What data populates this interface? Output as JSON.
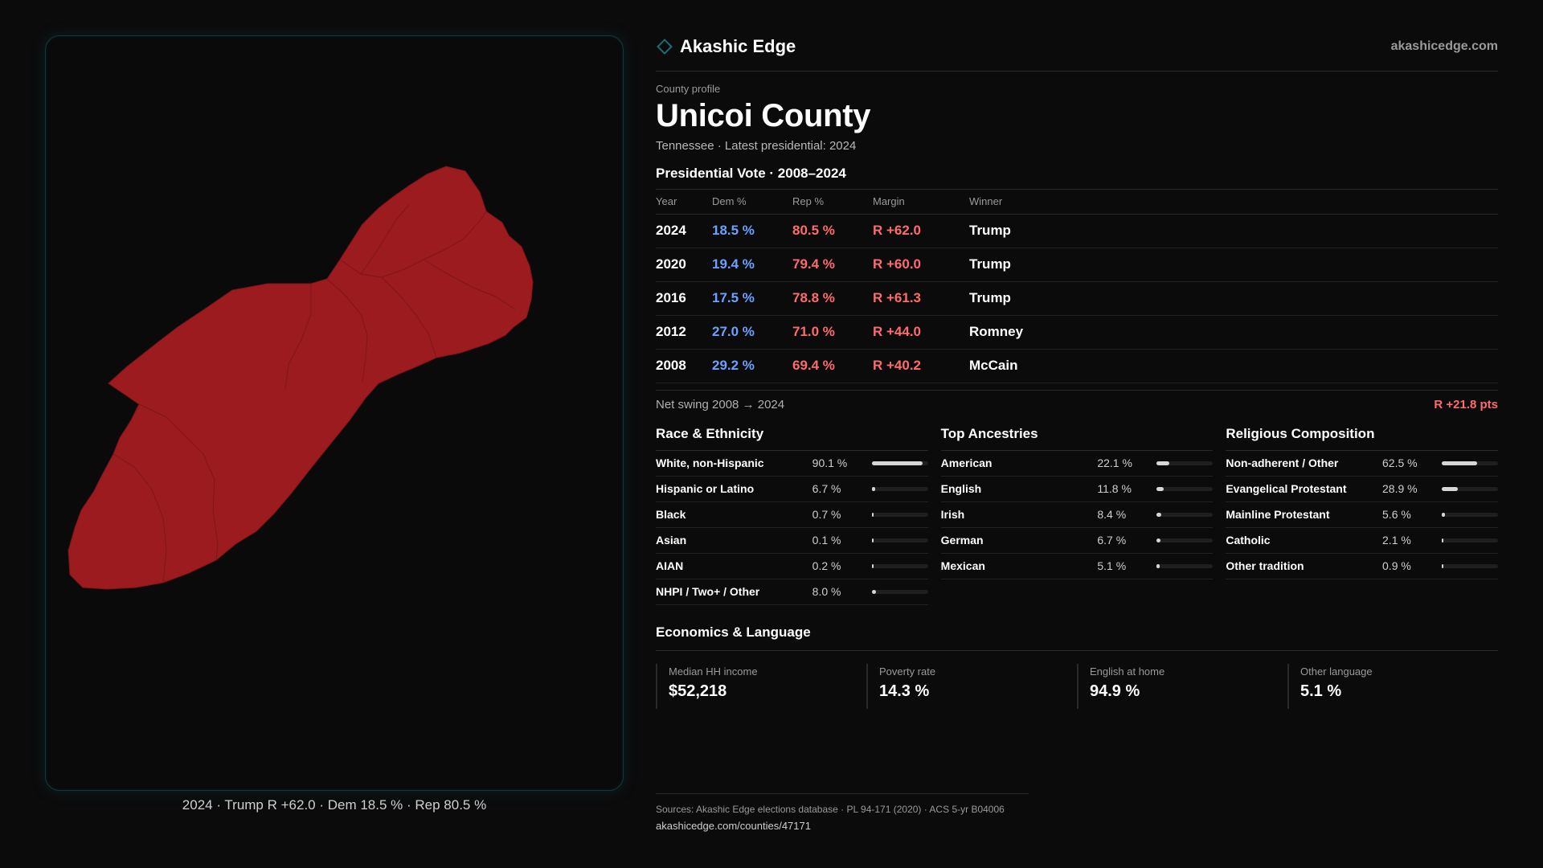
{
  "brand": {
    "name": "Akashic Edge",
    "url": "akashicedge.com",
    "logo_icon": "diamond-outline-icon",
    "accent": "#1d6c72"
  },
  "map": {
    "caption": "2024 · Trump R +62.0 · Dem 18.5 % · Rep 80.5 %",
    "fill_color": "#9b1b1f"
  },
  "profile": {
    "kicker": "County profile",
    "title": "Unicoi County",
    "subtitle": "Tennessee · Latest presidential: 2024"
  },
  "vote": {
    "title": "Presidential Vote · 2008–2024",
    "headers": {
      "year": "Year",
      "dem": "Dem %",
      "rep": "Rep %",
      "margin": "Margin",
      "winner": "Winner"
    },
    "rows": [
      {
        "year": "2024",
        "dem": "18.5 %",
        "rep": "80.5 %",
        "margin": "R +62.0",
        "winner": "Trump"
      },
      {
        "year": "2020",
        "dem": "19.4 %",
        "rep": "79.4 %",
        "margin": "R +60.0",
        "winner": "Trump"
      },
      {
        "year": "2016",
        "dem": "17.5 %",
        "rep": "78.8 %",
        "margin": "R +61.3",
        "winner": "Trump"
      },
      {
        "year": "2012",
        "dem": "27.0 %",
        "rep": "71.0 %",
        "margin": "R +44.0",
        "winner": "Romney"
      },
      {
        "year": "2008",
        "dem": "29.2 %",
        "rep": "69.4 %",
        "margin": "R +40.2",
        "winner": "McCain"
      }
    ],
    "colors": {
      "dem": "#6aa2ff",
      "rep": "#ff6b6b"
    }
  },
  "swing": {
    "label": "Net swing 2008 → 2024",
    "value": "R +21.8 pts"
  },
  "race": {
    "title": "Race & Ethnicity",
    "items": [
      {
        "label": "White, non-Hispanic",
        "value": "90.1 %",
        "pct": 90.1
      },
      {
        "label": "Hispanic or Latino",
        "value": "6.7 %",
        "pct": 6.7
      },
      {
        "label": "Black",
        "value": "0.7 %",
        "pct": 0.7
      },
      {
        "label": "Asian",
        "value": "0.1 %",
        "pct": 0.1
      },
      {
        "label": "AIAN",
        "value": "0.2 %",
        "pct": 0.2
      },
      {
        "label": "NHPI / Two+ / Other",
        "value": "8.0 %",
        "pct": 8.0
      }
    ]
  },
  "ancestry": {
    "title": "Top Ancestries",
    "items": [
      {
        "label": "American",
        "value": "22.1 %",
        "pct": 22.1
      },
      {
        "label": "English",
        "value": "11.8 %",
        "pct": 11.8
      },
      {
        "label": "Irish",
        "value": "8.4 %",
        "pct": 8.4
      },
      {
        "label": "German",
        "value": "6.7 %",
        "pct": 6.7
      },
      {
        "label": "Mexican",
        "value": "5.1 %",
        "pct": 5.1
      }
    ]
  },
  "religion": {
    "title": "Religious Composition",
    "items": [
      {
        "label": "Non-adherent / Other",
        "value": "62.5 %",
        "pct": 62.5
      },
      {
        "label": "Evangelical Protestant",
        "value": "28.9 %",
        "pct": 28.9
      },
      {
        "label": "Mainline Protestant",
        "value": "5.6 %",
        "pct": 5.6
      },
      {
        "label": "Catholic",
        "value": "2.1 %",
        "pct": 2.1
      },
      {
        "label": "Other tradition",
        "value": "0.9 %",
        "pct": 0.9
      }
    ]
  },
  "economics": {
    "title": "Economics & Language",
    "items": [
      {
        "label": "Median HH income",
        "value": "$52,218"
      },
      {
        "label": "Poverty rate",
        "value": "14.3 %"
      },
      {
        "label": "English at home",
        "value": "94.9 %"
      },
      {
        "label": "Other language",
        "value": "5.1 %"
      }
    ]
  },
  "sources": {
    "line": "Sources: Akashic Edge elections database · PL 94-171 (2020) · ACS 5-yr B04006",
    "url": "akashicedge.com/counties/47171"
  }
}
